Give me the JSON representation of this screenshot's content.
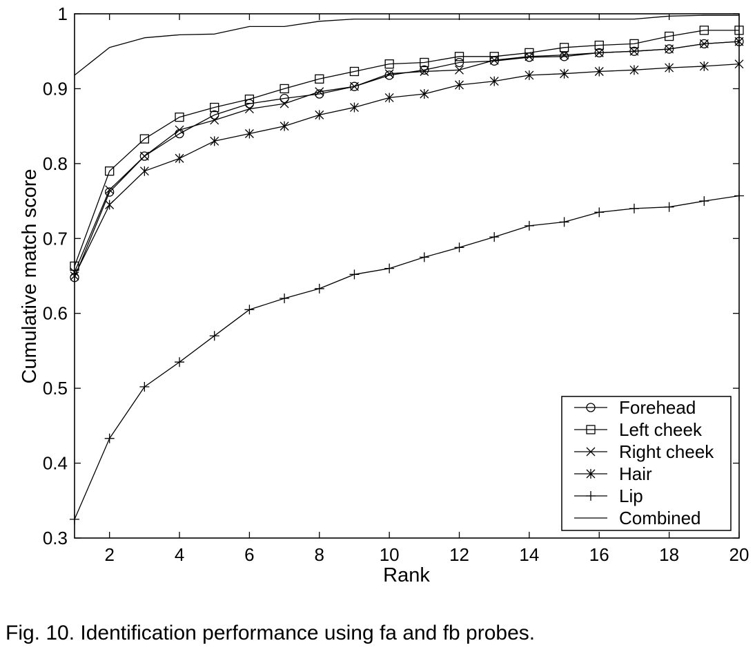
{
  "caption": "Fig. 10. Identification performance using fa and fb probes.",
  "chart_data": {
    "type": "line",
    "xlabel": "Rank",
    "ylabel": "Cumulative match score",
    "xlim": [
      1,
      20
    ],
    "ylim": [
      0.3,
      1.0
    ],
    "xticks": [
      2,
      4,
      6,
      8,
      10,
      12,
      14,
      16,
      18,
      20
    ],
    "yticks": [
      0.3,
      0.4,
      0.5,
      0.6,
      0.7,
      0.8,
      0.9,
      1.0
    ],
    "ytick_labels": [
      "0.3",
      "0.4",
      "0.5",
      "0.6",
      "0.7",
      "0.8",
      "0.9",
      "1"
    ],
    "grid": false,
    "legend_position": "lower-right",
    "x": [
      1,
      2,
      3,
      4,
      5,
      6,
      7,
      8,
      9,
      10,
      11,
      12,
      13,
      14,
      15,
      16,
      17,
      18,
      19,
      20
    ],
    "series": [
      {
        "name": "Forehead",
        "marker": "circle",
        "values": [
          0.648,
          0.762,
          0.81,
          0.84,
          0.865,
          0.88,
          0.887,
          0.893,
          0.903,
          0.918,
          0.925,
          0.935,
          0.937,
          0.942,
          0.943,
          0.948,
          0.95,
          0.953,
          0.96,
          0.963
        ]
      },
      {
        "name": "Left cheek",
        "marker": "square",
        "values": [
          0.663,
          0.79,
          0.833,
          0.862,
          0.875,
          0.886,
          0.9,
          0.913,
          0.923,
          0.933,
          0.935,
          0.943,
          0.943,
          0.948,
          0.955,
          0.958,
          0.96,
          0.97,
          0.978,
          0.978
        ]
      },
      {
        "name": "Right cheek",
        "marker": "x",
        "values": [
          0.655,
          0.765,
          0.81,
          0.845,
          0.858,
          0.873,
          0.88,
          0.896,
          0.903,
          0.92,
          0.923,
          0.925,
          0.938,
          0.943,
          0.945,
          0.948,
          0.95,
          0.953,
          0.96,
          0.963
        ]
      },
      {
        "name": "Hair",
        "marker": "asterisk",
        "values": [
          0.65,
          0.745,
          0.79,
          0.807,
          0.83,
          0.84,
          0.85,
          0.865,
          0.875,
          0.888,
          0.893,
          0.905,
          0.91,
          0.918,
          0.92,
          0.923,
          0.925,
          0.928,
          0.93,
          0.933
        ]
      },
      {
        "name": "Lip",
        "marker": "plus",
        "values": [
          0.325,
          0.433,
          0.502,
          0.535,
          0.57,
          0.605,
          0.62,
          0.633,
          0.652,
          0.66,
          0.675,
          0.688,
          0.702,
          0.717,
          0.722,
          0.735,
          0.74,
          0.742,
          0.75,
          0.757
        ]
      },
      {
        "name": "Combined",
        "marker": "none",
        "values": [
          0.918,
          0.955,
          0.968,
          0.972,
          0.973,
          0.983,
          0.983,
          0.99,
          0.993,
          0.993,
          0.993,
          0.993,
          0.993,
          0.993,
          0.993,
          0.993,
          0.993,
          0.997,
          0.998,
          0.998
        ]
      }
    ]
  }
}
